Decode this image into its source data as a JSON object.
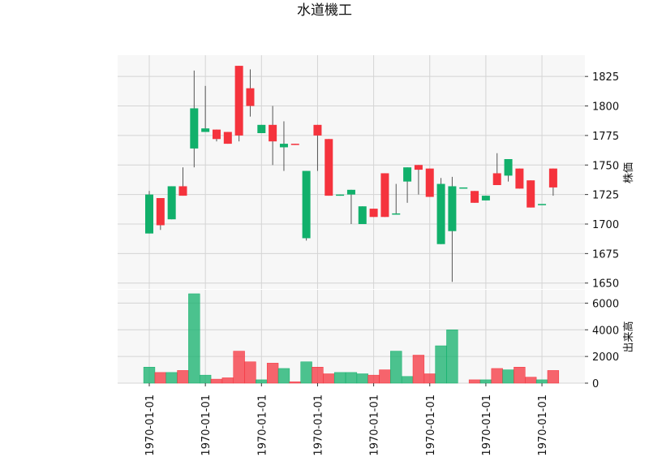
{
  "chart_data": {
    "type": "candlestick",
    "title": "水道機工",
    "price_panel": {
      "ylabel": "株価",
      "ylim": [
        1645,
        1843
      ],
      "yticks": [
        1650,
        1675,
        1700,
        1725,
        1750,
        1775,
        1800,
        1825
      ],
      "grid": true
    },
    "volume_panel": {
      "ylabel": "出来高",
      "ylim": [
        0,
        7000
      ],
      "yticks": [
        0,
        2000,
        4000,
        6000
      ],
      "grid": true
    },
    "x_tick_labels": [
      "1970-01-01",
      "1970-01-01",
      "1970-01-01",
      "1970-01-01",
      "1970-01-01",
      "1970-01-01",
      "1970-01-01",
      "1970-01-01"
    ],
    "x_tick_candle_index": [
      0,
      5,
      10,
      15,
      20,
      25,
      30,
      35
    ],
    "up_color": "#11b06b",
    "down_color": "#f5333d",
    "candles": [
      {
        "open": 1692,
        "high": 1728,
        "low": 1692,
        "close": 1725,
        "volume": 1200
      },
      {
        "open": 1722,
        "high": 1722,
        "low": 1695,
        "close": 1699,
        "volume": 800
      },
      {
        "open": 1704,
        "high": 1732,
        "low": 1704,
        "close": 1732,
        "volume": 800
      },
      {
        "open": 1732,
        "high": 1748,
        "low": 1724,
        "close": 1724,
        "volume": 950
      },
      {
        "open": 1764,
        "high": 1830,
        "low": 1748,
        "close": 1798,
        "volume": 6700
      },
      {
        "open": 1778,
        "high": 1817,
        "low": 1778,
        "close": 1781,
        "volume": 600
      },
      {
        "open": 1780,
        "high": 1780,
        "low": 1770,
        "close": 1772,
        "volume": 300
      },
      {
        "open": 1778,
        "high": 1778,
        "low": 1768,
        "close": 1768,
        "volume": 400
      },
      {
        "open": 1834,
        "high": 1834,
        "low": 1770,
        "close": 1775,
        "volume": 2400
      },
      {
        "open": 1815,
        "high": 1831,
        "low": 1791,
        "close": 1800,
        "volume": 1600
      },
      {
        "open": 1777,
        "high": 1784,
        "low": 1777,
        "close": 1784,
        "volume": 250
      },
      {
        "open": 1784,
        "high": 1800,
        "low": 1750,
        "close": 1770,
        "volume": 1500
      },
      {
        "open": 1765,
        "high": 1787,
        "low": 1745,
        "close": 1768,
        "volume": 1100
      },
      {
        "open": 1768,
        "high": 1768,
        "low": 1767,
        "close": 1767,
        "volume": 100
      },
      {
        "open": 1688,
        "high": 1745,
        "low": 1686,
        "close": 1745,
        "volume": 1600
      },
      {
        "open": 1784,
        "high": 1784,
        "low": 1745,
        "close": 1775,
        "volume": 1200
      },
      {
        "open": 1772,
        "high": 1772,
        "low": 1724,
        "close": 1724,
        "volume": 700
      },
      {
        "open": 1724,
        "high": 1725,
        "low": 1724,
        "close": 1725,
        "volume": 800
      },
      {
        "open": 1725,
        "high": 1729,
        "low": 1700,
        "close": 1729,
        "volume": 800
      },
      {
        "open": 1700,
        "high": 1715,
        "low": 1700,
        "close": 1715,
        "volume": 700
      },
      {
        "open": 1713,
        "high": 1713,
        "low": 1706,
        "close": 1706,
        "volume": 600
      },
      {
        "open": 1743,
        "high": 1743,
        "low": 1706,
        "close": 1706,
        "volume": 1000
      },
      {
        "open": 1708,
        "high": 1734,
        "low": 1708,
        "close": 1709,
        "volume": 2400
      },
      {
        "open": 1736,
        "high": 1748,
        "low": 1718,
        "close": 1748,
        "volume": 500
      },
      {
        "open": 1750,
        "high": 1750,
        "low": 1725,
        "close": 1746,
        "volume": 2100
      },
      {
        "open": 1747,
        "high": 1747,
        "low": 1723,
        "close": 1723,
        "volume": 700
      },
      {
        "open": 1683,
        "high": 1739,
        "low": 1683,
        "close": 1734,
        "volume": 2800
      },
      {
        "open": 1694,
        "high": 1740,
        "low": 1651,
        "close": 1732,
        "volume": 4000
      },
      {
        "open": 1731,
        "high": 1731,
        "low": 1731,
        "close": 1731,
        "volume": 0
      },
      {
        "open": 1728,
        "high": 1728,
        "low": 1718,
        "close": 1718,
        "volume": 250
      },
      {
        "open": 1720,
        "high": 1724,
        "low": 1720,
        "close": 1724,
        "volume": 250
      },
      {
        "open": 1743,
        "high": 1760,
        "low": 1733,
        "close": 1733,
        "volume": 1100
      },
      {
        "open": 1741,
        "high": 1755,
        "low": 1736,
        "close": 1755,
        "volume": 1000
      },
      {
        "open": 1747,
        "high": 1747,
        "low": 1730,
        "close": 1730,
        "volume": 1200
      },
      {
        "open": 1737,
        "high": 1737,
        "low": 1714,
        "close": 1714,
        "volume": 450
      },
      {
        "open": 1717,
        "high": 1717,
        "low": 1717,
        "close": 1717,
        "volume": 250
      },
      {
        "open": 1747,
        "high": 1747,
        "low": 1724,
        "close": 1731,
        "volume": 950
      }
    ]
  }
}
